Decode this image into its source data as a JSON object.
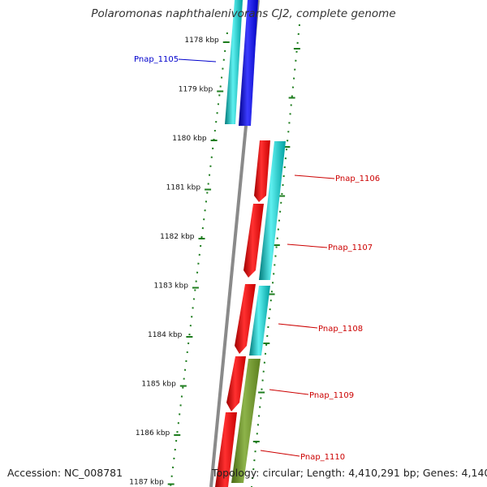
{
  "header": {
    "title": "Polaromonas naphthalenivorans CJ2, complete genome"
  },
  "footer": {
    "accession": "Accession: NC_008781",
    "summary": "Topology: circular; Length: 4,410,291 bp; Genes: 4,140"
  },
  "colors": {
    "backbone": "#8a8a8a",
    "tick": "#1e7d1e",
    "cds_forward": "#00c8c8",
    "rna_forward": "#0000ff",
    "cds_reverse": "#ff0000",
    "misc_feature": "#6b8e23",
    "label_blue": "#0000cc",
    "label_red": "#cc0000"
  },
  "ruler": {
    "labels": [
      "1178 kbp",
      "1179 kbp",
      "1180 kbp",
      "1181 kbp",
      "1182 kbp",
      "1183 kbp",
      "1184 kbp",
      "1185 kbp",
      "1186 kbp",
      "1187 kbp"
    ]
  },
  "genes": [
    {
      "name": "Pnap_1105",
      "color": "blue"
    },
    {
      "name": "Pnap_1106",
      "color": "red"
    },
    {
      "name": "Pnap_1107",
      "color": "red"
    },
    {
      "name": "Pnap_1108",
      "color": "red"
    },
    {
      "name": "Pnap_1109",
      "color": "red"
    },
    {
      "name": "Pnap_1110",
      "color": "red"
    }
  ]
}
